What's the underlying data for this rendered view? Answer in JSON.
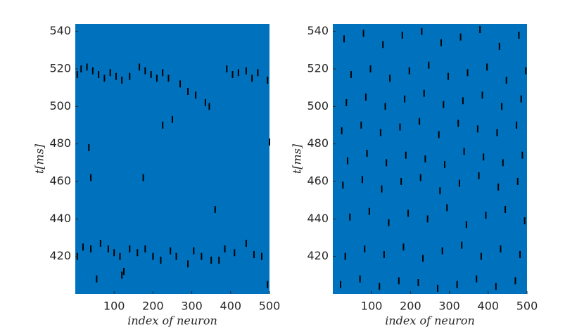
{
  "chart_data": [
    {
      "type": "scatter",
      "xlabel": "index of neuron",
      "ylabel": "t[ms]",
      "background": "#0072bd",
      "color": "#000000",
      "xlim": [
        0,
        500
      ],
      "ylim": [
        400,
        544
      ],
      "xticks": [
        100,
        200,
        300,
        400,
        500
      ],
      "yticks": [
        420,
        440,
        460,
        480,
        500,
        520,
        540
      ],
      "x": [
        5,
        15,
        30,
        45,
        60,
        75,
        90,
        105,
        120,
        140,
        165,
        180,
        195,
        210,
        225,
        240,
        270,
        290,
        310,
        335,
        345,
        390,
        405,
        420,
        440,
        455,
        470,
        495,
        35,
        40,
        175,
        225,
        500,
        360,
        250,
        5,
        20,
        40,
        65,
        85,
        100,
        115,
        125,
        140,
        160,
        180,
        200,
        220,
        245,
        260,
        290,
        305,
        325,
        350,
        370,
        385,
        410,
        440,
        460,
        480,
        495,
        55,
        120
      ],
      "y": [
        517,
        520,
        521,
        519,
        517,
        515,
        518,
        516,
        514,
        516,
        521,
        519,
        517,
        515,
        518,
        515,
        512,
        508,
        506,
        502,
        500,
        520,
        517,
        518,
        519,
        515,
        518,
        514,
        478,
        462,
        462,
        490,
        481,
        445,
        493,
        420,
        425,
        424,
        427,
        424,
        422,
        420,
        412,
        424,
        422,
        424,
        420,
        418,
        423,
        420,
        416,
        423,
        420,
        418,
        418,
        424,
        422,
        427,
        421,
        420,
        405,
        408,
        410
      ]
    },
    {
      "type": "scatter",
      "xlabel": "index of neuron",
      "ylabel": "t[ms]",
      "background": "#0072bd",
      "color": "#000000",
      "xlim": [
        0,
        500
      ],
      "ylim": [
        400,
        544
      ],
      "xticks": [
        100,
        200,
        300,
        400,
        500
      ],
      "yticks": [
        420,
        440,
        460,
        480,
        500,
        520,
        540
      ],
      "x": [
        20,
        70,
        120,
        170,
        220,
        270,
        320,
        370,
        420,
        470,
        32,
        82,
        132,
        182,
        232,
        282,
        332,
        382,
        432,
        482,
        44,
        94,
        144,
        194,
        244,
        294,
        344,
        394,
        444,
        494,
        26,
        76,
        126,
        176,
        226,
        276,
        326,
        376,
        426,
        476,
        38,
        88,
        138,
        188,
        238,
        288,
        338,
        388,
        438,
        488,
        23,
        73,
        123,
        173,
        223,
        273,
        323,
        373,
        423,
        473,
        35,
        85,
        135,
        185,
        235,
        285,
        335,
        385,
        435,
        485,
        47,
        97,
        147,
        197,
        247,
        297,
        347,
        397,
        447,
        497,
        29,
        79,
        129,
        179,
        229,
        279,
        329,
        379,
        429,
        479
      ],
      "y": [
        405,
        408,
        404,
        407,
        406,
        403,
        405,
        408,
        404,
        407,
        420,
        424,
        421,
        425,
        419,
        423,
        426,
        420,
        424,
        421,
        441,
        444,
        438,
        443,
        440,
        446,
        437,
        442,
        445,
        439,
        458,
        461,
        456,
        460,
        462,
        455,
        459,
        463,
        457,
        460,
        471,
        475,
        470,
        474,
        472,
        469,
        476,
        473,
        470,
        474,
        487,
        490,
        486,
        489,
        492,
        485,
        491,
        488,
        486,
        490,
        502,
        505,
        500,
        504,
        507,
        501,
        503,
        506,
        500,
        504,
        517,
        520,
        515,
        519,
        522,
        516,
        518,
        521,
        514,
        519,
        536,
        539,
        533,
        538,
        540,
        534,
        537,
        541,
        532,
        538
      ]
    }
  ]
}
